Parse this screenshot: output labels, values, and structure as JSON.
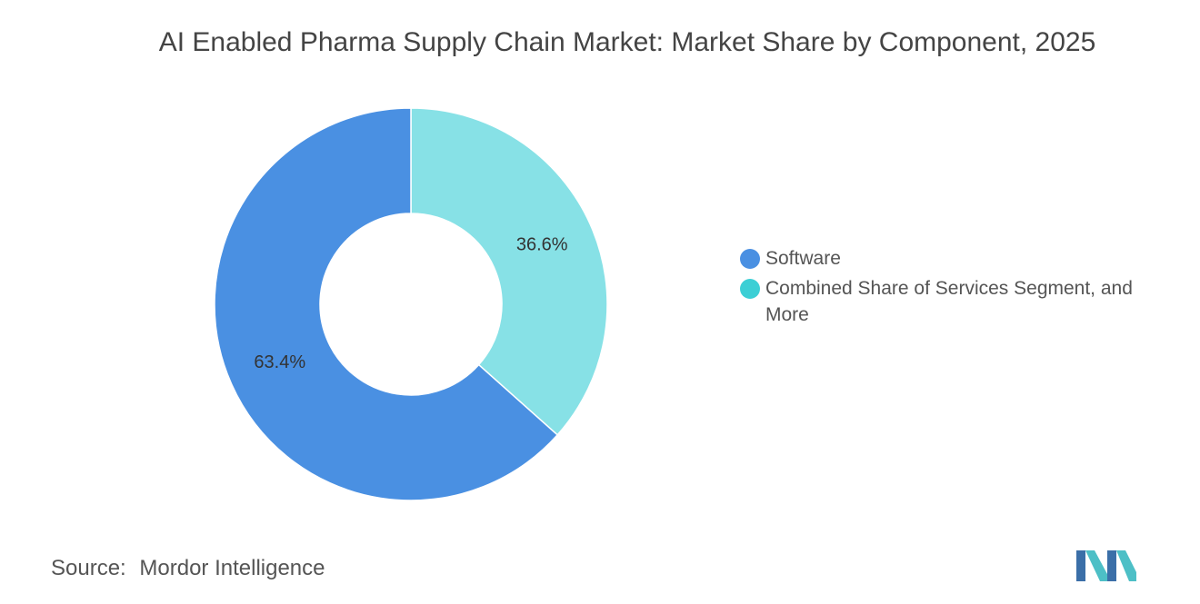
{
  "chart_data": {
    "type": "pie",
    "title": "AI Enabled Pharma Supply Chain Market: Market Share by Component, 2025",
    "donut": true,
    "slices": [
      {
        "label": "Software",
        "value": 63.4,
        "display": "63.4%",
        "color": "#4A90E2"
      },
      {
        "label": "Combined Share of Services Segment, and More",
        "value": 36.6,
        "display": "36.6%",
        "color": "#87E1E6"
      }
    ],
    "legend_colors": [
      "#4A90E2",
      "#3CCFD5"
    ],
    "legend_position": "right"
  },
  "footer": {
    "source_label": "Source:",
    "source_text": "Mordor Intelligence"
  },
  "logo": {
    "icon": "mordor-intelligence-logo",
    "colors": [
      "#3B6FA8",
      "#4DBFC6"
    ]
  }
}
